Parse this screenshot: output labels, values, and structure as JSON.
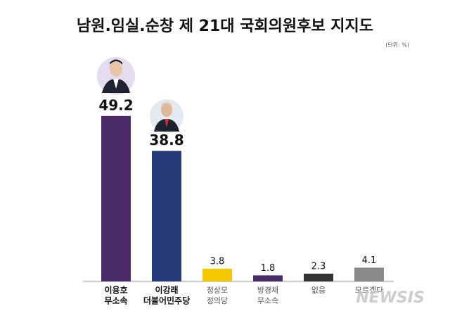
{
  "chart_data": {
    "type": "bar",
    "title": "남원.임실.순창 제 21대 국회의원후보 지지도",
    "unit_note": "(단위: %)",
    "categories": [
      [
        "이용호",
        "무소속"
      ],
      [
        "이강래",
        "더불어민주당"
      ],
      [
        "정상모",
        "정의당"
      ],
      [
        "방경채",
        "무소속"
      ],
      [
        "없음"
      ],
      [
        "모르겠다"
      ]
    ],
    "values": [
      49.2,
      38.8,
      3.8,
      1.8,
      2.3,
      4.1
    ],
    "colors": [
      "#4a2a68",
      "#263b7c",
      "#f4c800",
      "#4a2a68",
      "#333333",
      "#8a8a8a"
    ],
    "ylim": [
      0,
      50
    ],
    "watermark": "NEWSIS"
  }
}
